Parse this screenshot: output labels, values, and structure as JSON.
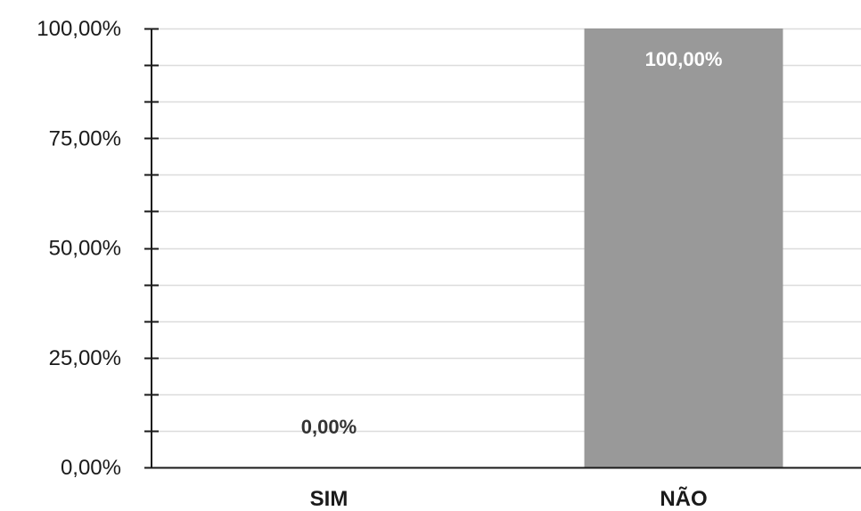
{
  "chart_data": {
    "type": "bar",
    "categories": [
      "SIM",
      "NÃO"
    ],
    "values": [
      0,
      100
    ],
    "data_labels": [
      "0,00%",
      "100,00%"
    ],
    "ylim": [
      0,
      100
    ],
    "yticks": [
      0,
      25,
      50,
      75,
      100
    ],
    "ytick_labels": [
      "0,00%",
      "25,00%",
      "50,00%",
      "75,00%",
      "100,00%"
    ],
    "minor_step": 8.333,
    "grid": true,
    "legend": "none",
    "title": "",
    "xlabel": "",
    "ylabel": "",
    "colors": {
      "bar": "#999999",
      "grid": "#dcdcdc",
      "axis": "#1a1a1a",
      "label_inside": "#ffffff",
      "label_outside": "#333333"
    }
  }
}
